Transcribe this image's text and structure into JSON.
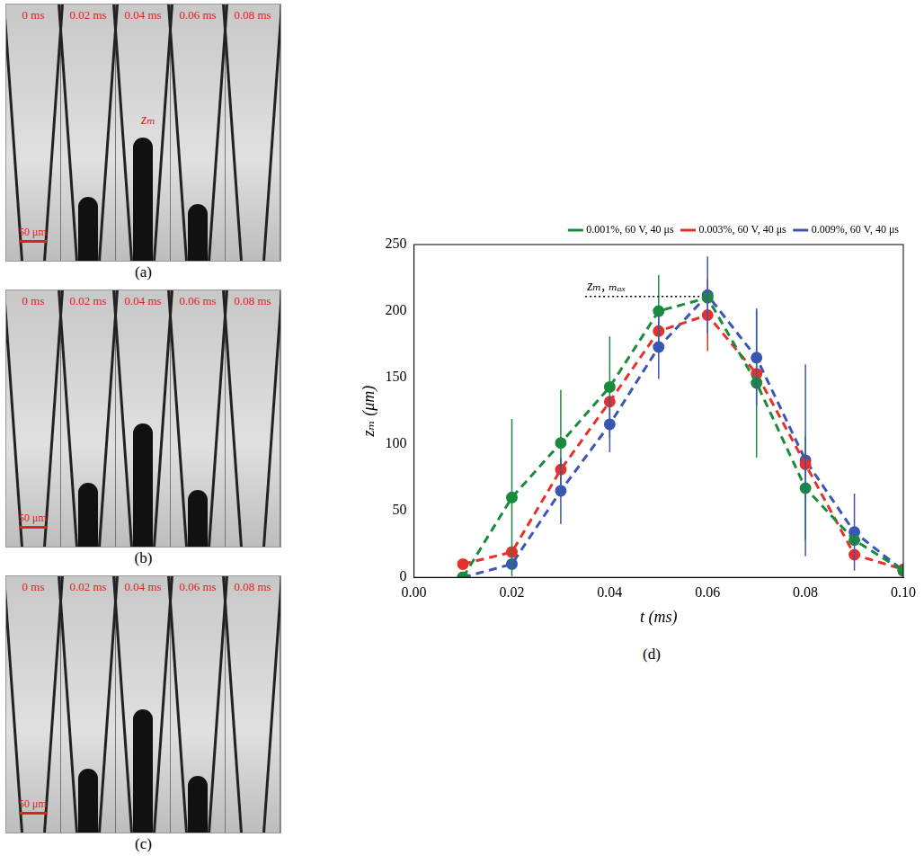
{
  "panels": [
    {
      "caption": "(a)",
      "frames": [
        "0 ms",
        "0.02 ms",
        "0.04 ms",
        "0.06 ms",
        "0.08 ms"
      ],
      "scale_bar": "50 μm",
      "annotation": "zₘ"
    },
    {
      "caption": "(b)",
      "frames": [
        "0 ms",
        "0.02 ms",
        "0.04 ms",
        "0.06 ms",
        "0.08 ms"
      ],
      "scale_bar": "50 μm"
    },
    {
      "caption": "(c)",
      "frames": [
        "0 ms",
        "0.02 ms",
        "0.04 ms",
        "0.06 ms",
        "0.08 ms"
      ],
      "scale_bar": "50 μm"
    }
  ],
  "chart_data": {
    "type": "line",
    "caption": "(d)",
    "x_label": "t (ms)",
    "y_label": "zₘ (μm)",
    "x": [
      0.01,
      0.02,
      0.03,
      0.04,
      0.05,
      0.06,
      0.07,
      0.08,
      0.09,
      0.1
    ],
    "series": [
      {
        "name": "0.001%, 60 V, 40 μs",
        "color": "#1a8a3c",
        "line_style": "dashed",
        "marker": "circle",
        "values": [
          0,
          60,
          101,
          143,
          200,
          210,
          146,
          67,
          28,
          5
        ],
        "errors": [
          null,
          59,
          40,
          38,
          27,
          null,
          56,
          39,
          null,
          null
        ]
      },
      {
        "name": "0.003%, 60 V, 40 μs",
        "color": "#e8302a",
        "line_style": "dashed",
        "marker": "circle",
        "values": [
          10,
          19,
          81,
          132,
          185,
          197,
          153,
          85,
          17,
          6
        ],
        "errors": [
          null,
          null,
          null,
          null,
          null,
          27,
          null,
          null,
          null,
          null
        ]
      },
      {
        "name": "0.009%, 60 V, 40 μs",
        "color": "#3a55b4",
        "line_style": "dashed",
        "marker": "circle",
        "values": [
          0,
          10,
          65,
          115,
          173,
          212,
          165,
          88,
          34,
          5
        ],
        "errors": [
          null,
          null,
          25,
          21,
          24,
          29,
          36,
          72,
          29,
          null
        ]
      }
    ],
    "xlim": [
      0,
      0.1
    ],
    "xticks": [
      {
        "value": 0,
        "label": "0.00"
      },
      {
        "value": 0.02,
        "label": "0.02"
      },
      {
        "value": 0.04,
        "label": "0.04"
      },
      {
        "value": 0.06,
        "label": "0.06"
      },
      {
        "value": 0.08,
        "label": "0.08"
      },
      {
        "value": 0.1,
        "label": "0.10"
      }
    ],
    "ylim": [
      0,
      250
    ],
    "yticks": [
      0,
      50,
      100,
      150,
      200,
      250
    ],
    "grid": false,
    "legend": "top-right",
    "annotations": [
      {
        "text": "zₘ, ₘₐₓ",
        "x": 0.035,
        "y": 211,
        "x_end": 0.06
      }
    ]
  }
}
